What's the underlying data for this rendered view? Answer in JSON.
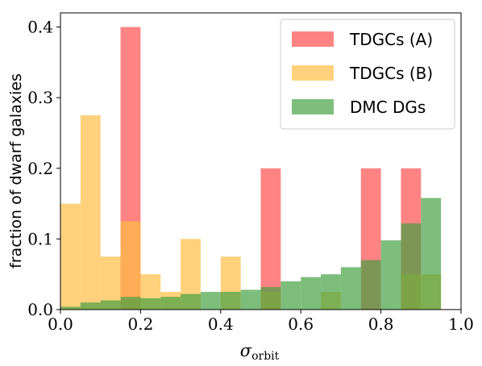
{
  "chart_data": {
    "type": "bar",
    "ylabel": "fraction of dwarf galaxies",
    "xlabel_symbol": "σ",
    "xlabel_subscript": "orbit",
    "xlim": [
      0.0,
      1.0
    ],
    "ylim": [
      0.0,
      0.42
    ],
    "xticks": [
      "0.0",
      "0.2",
      "0.4",
      "0.6",
      "0.8",
      "1.0"
    ],
    "xtick_values": [
      0.0,
      0.2,
      0.4,
      0.6,
      0.8,
      1.0
    ],
    "yticks": [
      "0.0",
      "0.1",
      "0.2",
      "0.3",
      "0.4"
    ],
    "ytick_values": [
      0.0,
      0.1,
      0.2,
      0.3,
      0.4
    ],
    "bin_edges": [
      0.0,
      0.05,
      0.1,
      0.15,
      0.2,
      0.25,
      0.3,
      0.35,
      0.4,
      0.45,
      0.5,
      0.55,
      0.6,
      0.65,
      0.7,
      0.75,
      0.8,
      0.85,
      0.9,
      0.95
    ],
    "legend_position": "top-right",
    "series": [
      {
        "name": "TDGCs (A)",
        "color": "#ff5a5a",
        "opacity": 0.75,
        "values": [
          0,
          0,
          0,
          0.4,
          0,
          0,
          0,
          0,
          0,
          0,
          0.2,
          0,
          0,
          0,
          0,
          0.2,
          0,
          0.2,
          0
        ]
      },
      {
        "name": "TDGCs (B)",
        "color": "#ffbd45",
        "opacity": 0.7,
        "values": [
          0.15,
          0.275,
          0.075,
          0.125,
          0.05,
          0.025,
          0.1,
          0.0,
          0.075,
          0.0,
          0.025,
          0.0,
          0.0,
          0.025,
          0.0,
          0.0,
          0.0,
          0.05,
          0.05
        ]
      },
      {
        "name": "DMC DGs",
        "color": "#3f9f3f",
        "opacity": 0.68,
        "values": [
          0.004,
          0.01,
          0.013,
          0.018,
          0.016,
          0.018,
          0.022,
          0.025,
          0.025,
          0.028,
          0.032,
          0.04,
          0.046,
          0.05,
          0.06,
          0.07,
          0.098,
          0.122,
          0.158
        ]
      }
    ]
  }
}
